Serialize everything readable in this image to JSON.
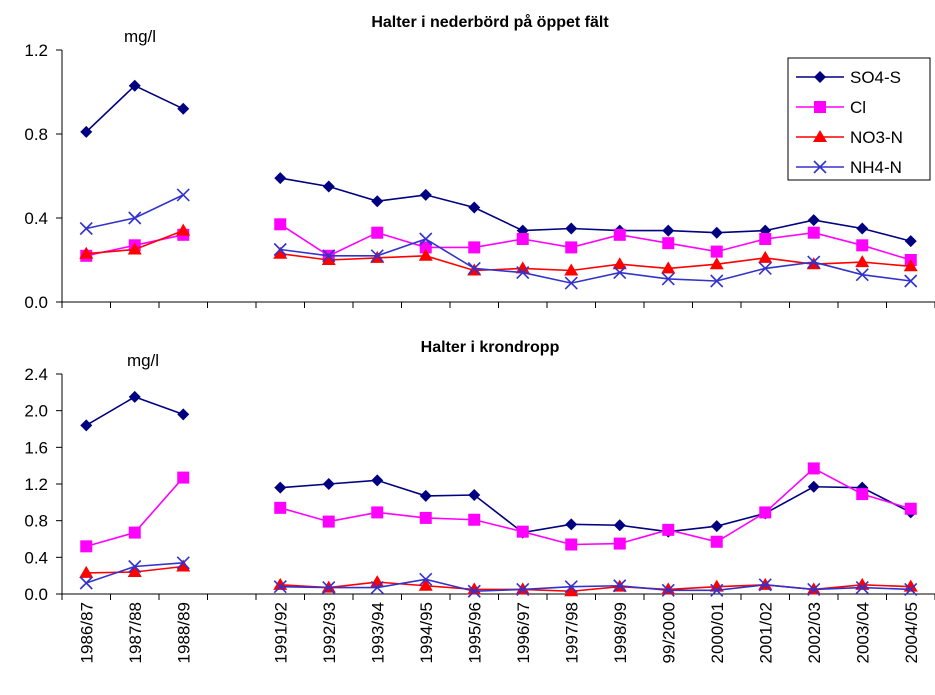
{
  "chart_data": [
    {
      "type": "line",
      "title": "Halter i nederbörd på  öppet fält",
      "annotation": "mg/l",
      "ylim": [
        0,
        1.2
      ],
      "yticks": [
        {
          "value": 0,
          "label": "0.0"
        },
        0.4,
        0.8,
        1.2
      ],
      "legend": "upper right",
      "series": [
        {
          "name": "SO4-S",
          "color": "#000080",
          "marker": "diamond",
          "values": [
            0.81,
            1.03,
            0.92,
            null,
            0.59,
            0.55,
            0.48,
            0.51,
            0.45,
            0.34,
            0.35,
            0.34,
            0.34,
            0.33,
            0.34,
            0.39,
            0.35,
            0.29
          ]
        },
        {
          "name": "Cl",
          "color": "#ff00ff",
          "marker": "square",
          "values": [
            0.22,
            0.27,
            0.32,
            null,
            0.37,
            0.22,
            0.33,
            0.26,
            0.26,
            0.3,
            0.26,
            0.32,
            0.28,
            0.24,
            0.3,
            0.33,
            0.27,
            0.2
          ]
        },
        {
          "name": "NO3-N",
          "color": "#ff0000",
          "marker": "triangle",
          "values": [
            0.23,
            0.25,
            0.34,
            null,
            0.23,
            0.2,
            0.21,
            0.22,
            0.15,
            0.16,
            0.15,
            0.18,
            0.16,
            0.18,
            0.21,
            0.18,
            0.19,
            0.17
          ]
        },
        {
          "name": "NH4-N",
          "color": "#3333cc",
          "marker": "x",
          "values": [
            0.35,
            0.4,
            0.51,
            null,
            0.25,
            0.22,
            0.22,
            0.3,
            0.16,
            0.14,
            0.09,
            0.14,
            0.11,
            0.1,
            0.16,
            0.19,
            0.13,
            0.1
          ]
        }
      ]
    },
    {
      "type": "line",
      "title": "Halter i  krondropp",
      "annotation": "mg/l",
      "categories": [
        "1986/87",
        "1987/88",
        "1988/89",
        null,
        "1991/92",
        "1992/93",
        "1993/94",
        "1994/95",
        "1995/96",
        "1996/97",
        "1997/98",
        "1998/99",
        "99/2000",
        "2000/01",
        "2001/02",
        "2002/03",
        "2003/04",
        "2004/05"
      ],
      "ylim": [
        0,
        2.4
      ],
      "yticks": [
        {
          "value": 0,
          "label": "0.0"
        },
        0.4,
        0.8,
        1.2,
        1.6,
        {
          "value": 2,
          "label": "2.0"
        },
        2.4
      ],
      "series": [
        {
          "color": "#000080",
          "marker": "diamond",
          "values": [
            1.84,
            2.15,
            1.96,
            null,
            1.16,
            1.2,
            1.24,
            1.07,
            1.08,
            0.67,
            0.76,
            0.75,
            0.68,
            0.74,
            0.88,
            1.17,
            1.16,
            0.89
          ]
        },
        {
          "color": "#ff00ff",
          "marker": "square",
          "values": [
            0.52,
            0.67,
            1.27,
            null,
            0.94,
            0.79,
            0.89,
            0.83,
            0.81,
            0.68,
            0.54,
            0.55,
            0.7,
            0.57,
            0.89,
            1.37,
            1.09,
            0.93
          ]
        },
        {
          "color": "#ff0000",
          "marker": "triangle",
          "values": [
            0.23,
            0.24,
            0.3,
            null,
            0.1,
            0.07,
            0.13,
            0.09,
            0.05,
            0.05,
            0.03,
            0.08,
            0.05,
            0.08,
            0.1,
            0.05,
            0.1,
            0.08
          ]
        },
        {
          "color": "#3333cc",
          "marker": "x",
          "values": [
            0.12,
            0.3,
            0.34,
            null,
            0.08,
            0.07,
            0.07,
            0.16,
            0.03,
            0.05,
            0.08,
            0.09,
            0.04,
            0.04,
            0.1,
            0.05,
            0.07,
            0.05
          ]
        }
      ]
    }
  ]
}
